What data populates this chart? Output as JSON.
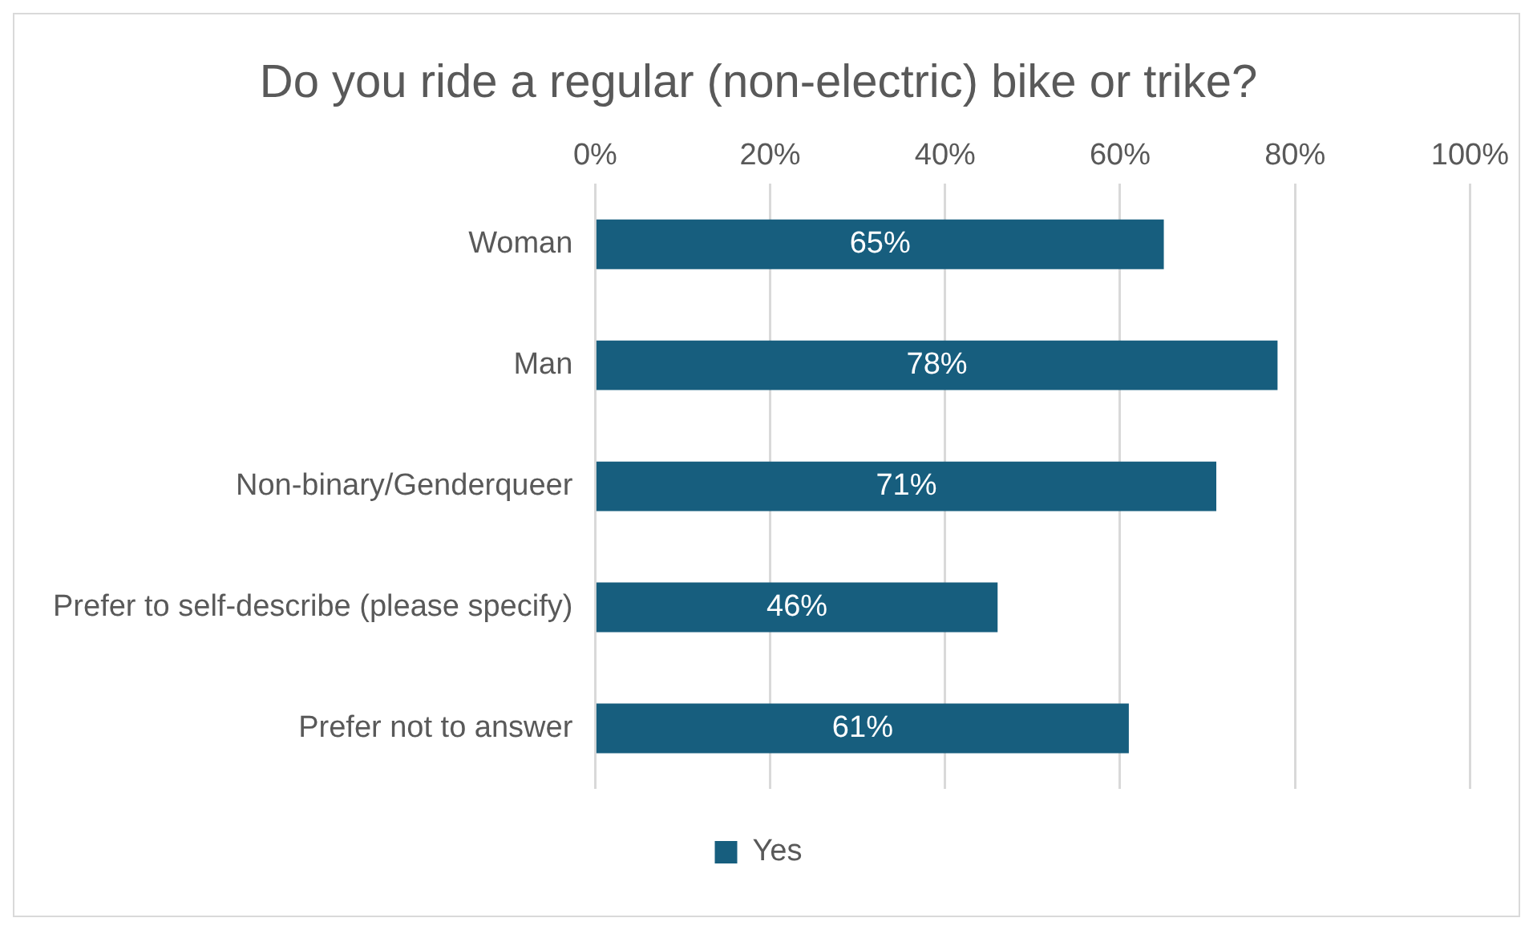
{
  "chart_data": {
    "type": "bar",
    "orientation": "horizontal",
    "title": "Do you ride a regular (non-electric) bike or trike?",
    "categories": [
      "Woman",
      "Man",
      "Non-binary/Genderqueer",
      "Prefer to self-describe (please specify)",
      "Prefer not to answer"
    ],
    "series": [
      {
        "name": "Yes",
        "color": "#175e7e",
        "values": [
          65,
          78,
          71,
          46,
          61
        ],
        "value_labels": [
          "65%",
          "78%",
          "71%",
          "46%",
          "61%"
        ]
      }
    ],
    "xlim": [
      0,
      100
    ],
    "xticks": [
      {
        "value": 0,
        "label": "0%"
      },
      {
        "value": 20,
        "label": "20%"
      },
      {
        "value": 40,
        "label": "40%"
      },
      {
        "value": 60,
        "label": "60%"
      },
      {
        "value": 80,
        "label": "80%"
      },
      {
        "value": 100,
        "label": "100%"
      }
    ],
    "grid": "x",
    "legend": "bottom"
  }
}
